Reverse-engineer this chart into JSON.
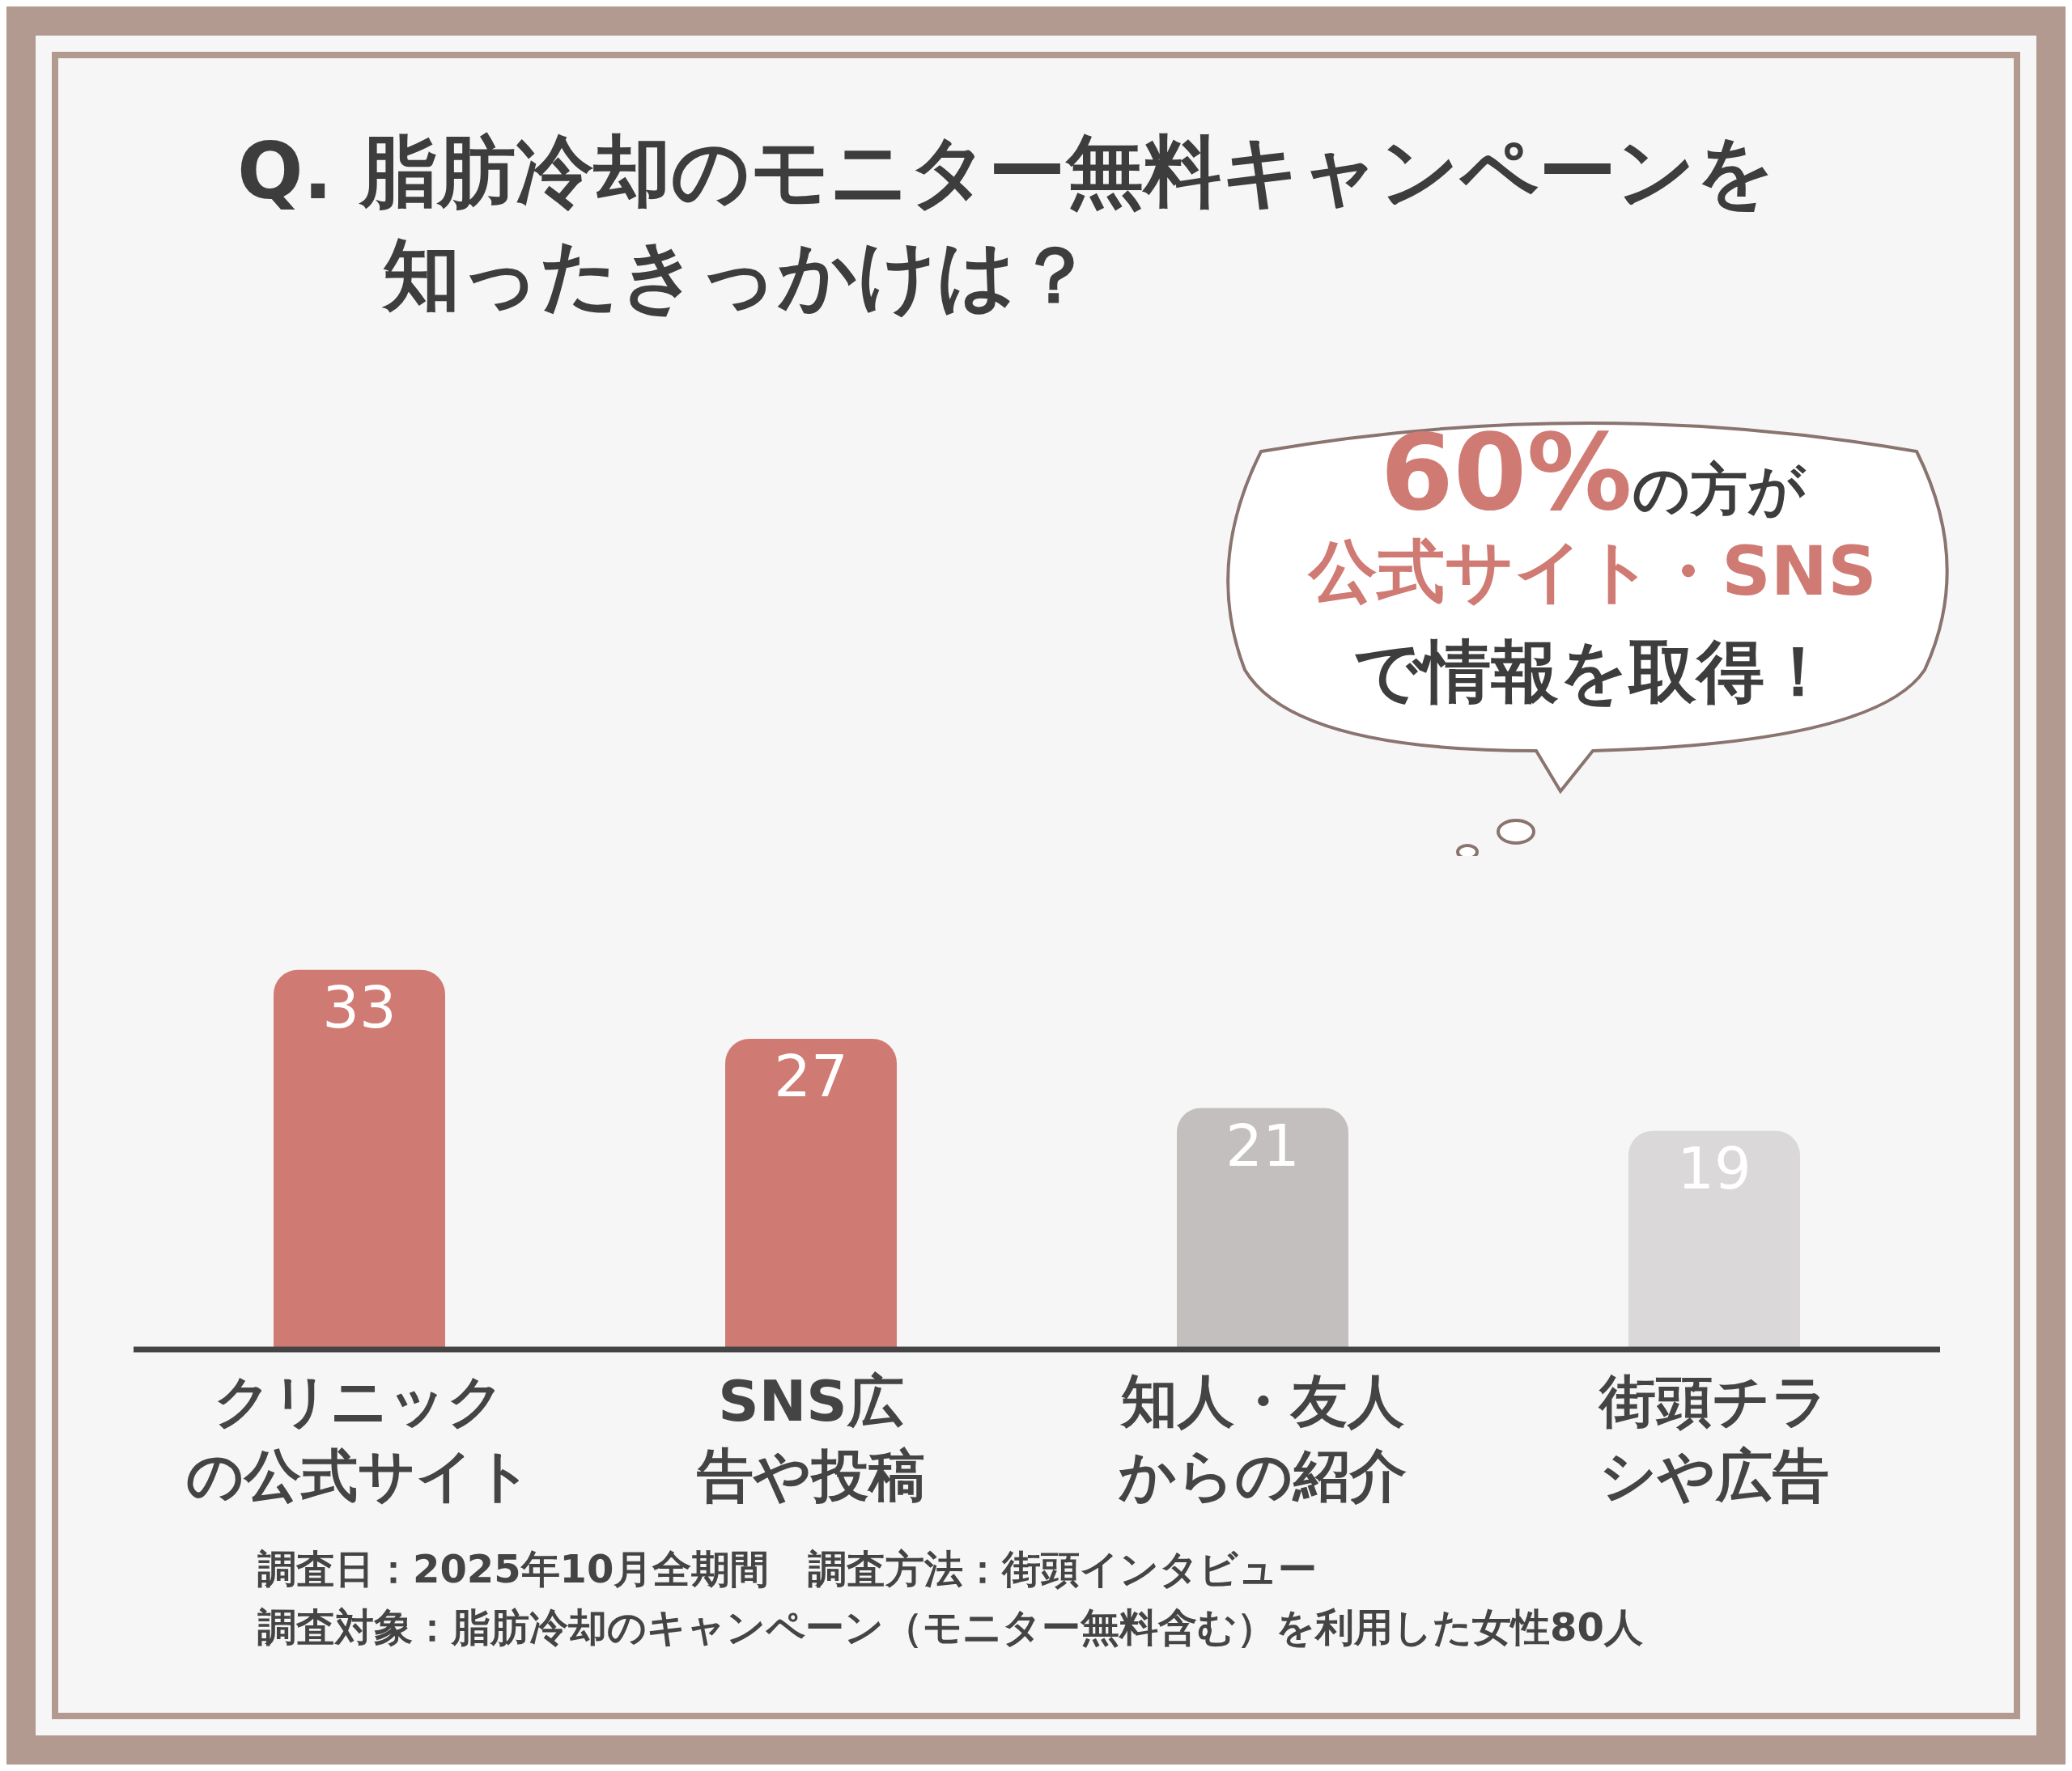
{
  "chart_data": {
    "type": "bar",
    "title": "Q. 脂肪冷却のモニター無料キャンペーンを知ったきっかけは？",
    "categories": [
      "クリニックの公式サイト",
      "SNS広告や投稿",
      "知人・友人からの紹介",
      "街頭チラシや広告"
    ],
    "values": [
      33,
      27,
      21,
      19
    ],
    "colors": [
      "#d07a74",
      "#d07a74",
      "#c3bfbe",
      "#dad8d8"
    ],
    "data_labels": true,
    "annotations": [
      "60%",
      "の方が",
      "公式サイト・SNS",
      "で情報を取得！",
      "調査日：2025年10月全期間　調査方法：街頭インタビュー",
      "調査対象：脂肪冷却のキャンペーン（モニター無料含む）を利用した女性80人"
    ]
  }
}
